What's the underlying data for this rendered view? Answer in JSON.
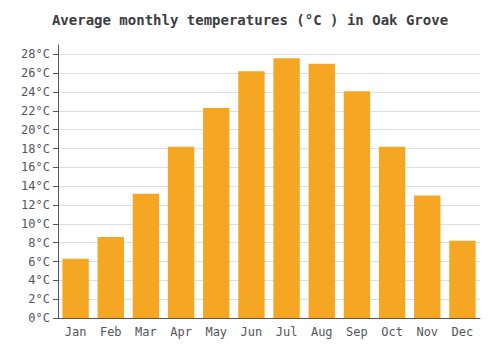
{
  "chart_data": {
    "type": "bar",
    "title": "Average monthly temperatures (°C ) in Oak Grove",
    "categories": [
      "Jan",
      "Feb",
      "Mar",
      "Apr",
      "May",
      "Jun",
      "Jul",
      "Aug",
      "Sep",
      "Oct",
      "Nov",
      "Dec"
    ],
    "values": [
      6.3,
      8.6,
      13.2,
      18.2,
      22.3,
      26.2,
      27.6,
      27.0,
      24.1,
      18.2,
      13.0,
      8.2
    ],
    "color": "#F5A623",
    "ylim": [
      0,
      29
    ],
    "yticks": [
      {
        "value": 0,
        "label": "0°C"
      },
      {
        "value": 2,
        "label": "2°C"
      },
      {
        "value": 4,
        "label": "4°C"
      },
      {
        "value": 6,
        "label": "6°C"
      },
      {
        "value": 8,
        "label": "8°C"
      },
      {
        "value": 10,
        "label": "10°C"
      },
      {
        "value": 12,
        "label": "12°C"
      },
      {
        "value": 14,
        "label": "14°C"
      },
      {
        "value": 16,
        "label": "16°C"
      },
      {
        "value": 18,
        "label": "18°C"
      },
      {
        "value": 20,
        "label": "20°C"
      },
      {
        "value": 22,
        "label": "22°C"
      },
      {
        "value": 24,
        "label": "24°C"
      },
      {
        "value": 26,
        "label": "26°C"
      },
      {
        "value": 28,
        "label": "28°C"
      }
    ],
    "grid": true
  }
}
